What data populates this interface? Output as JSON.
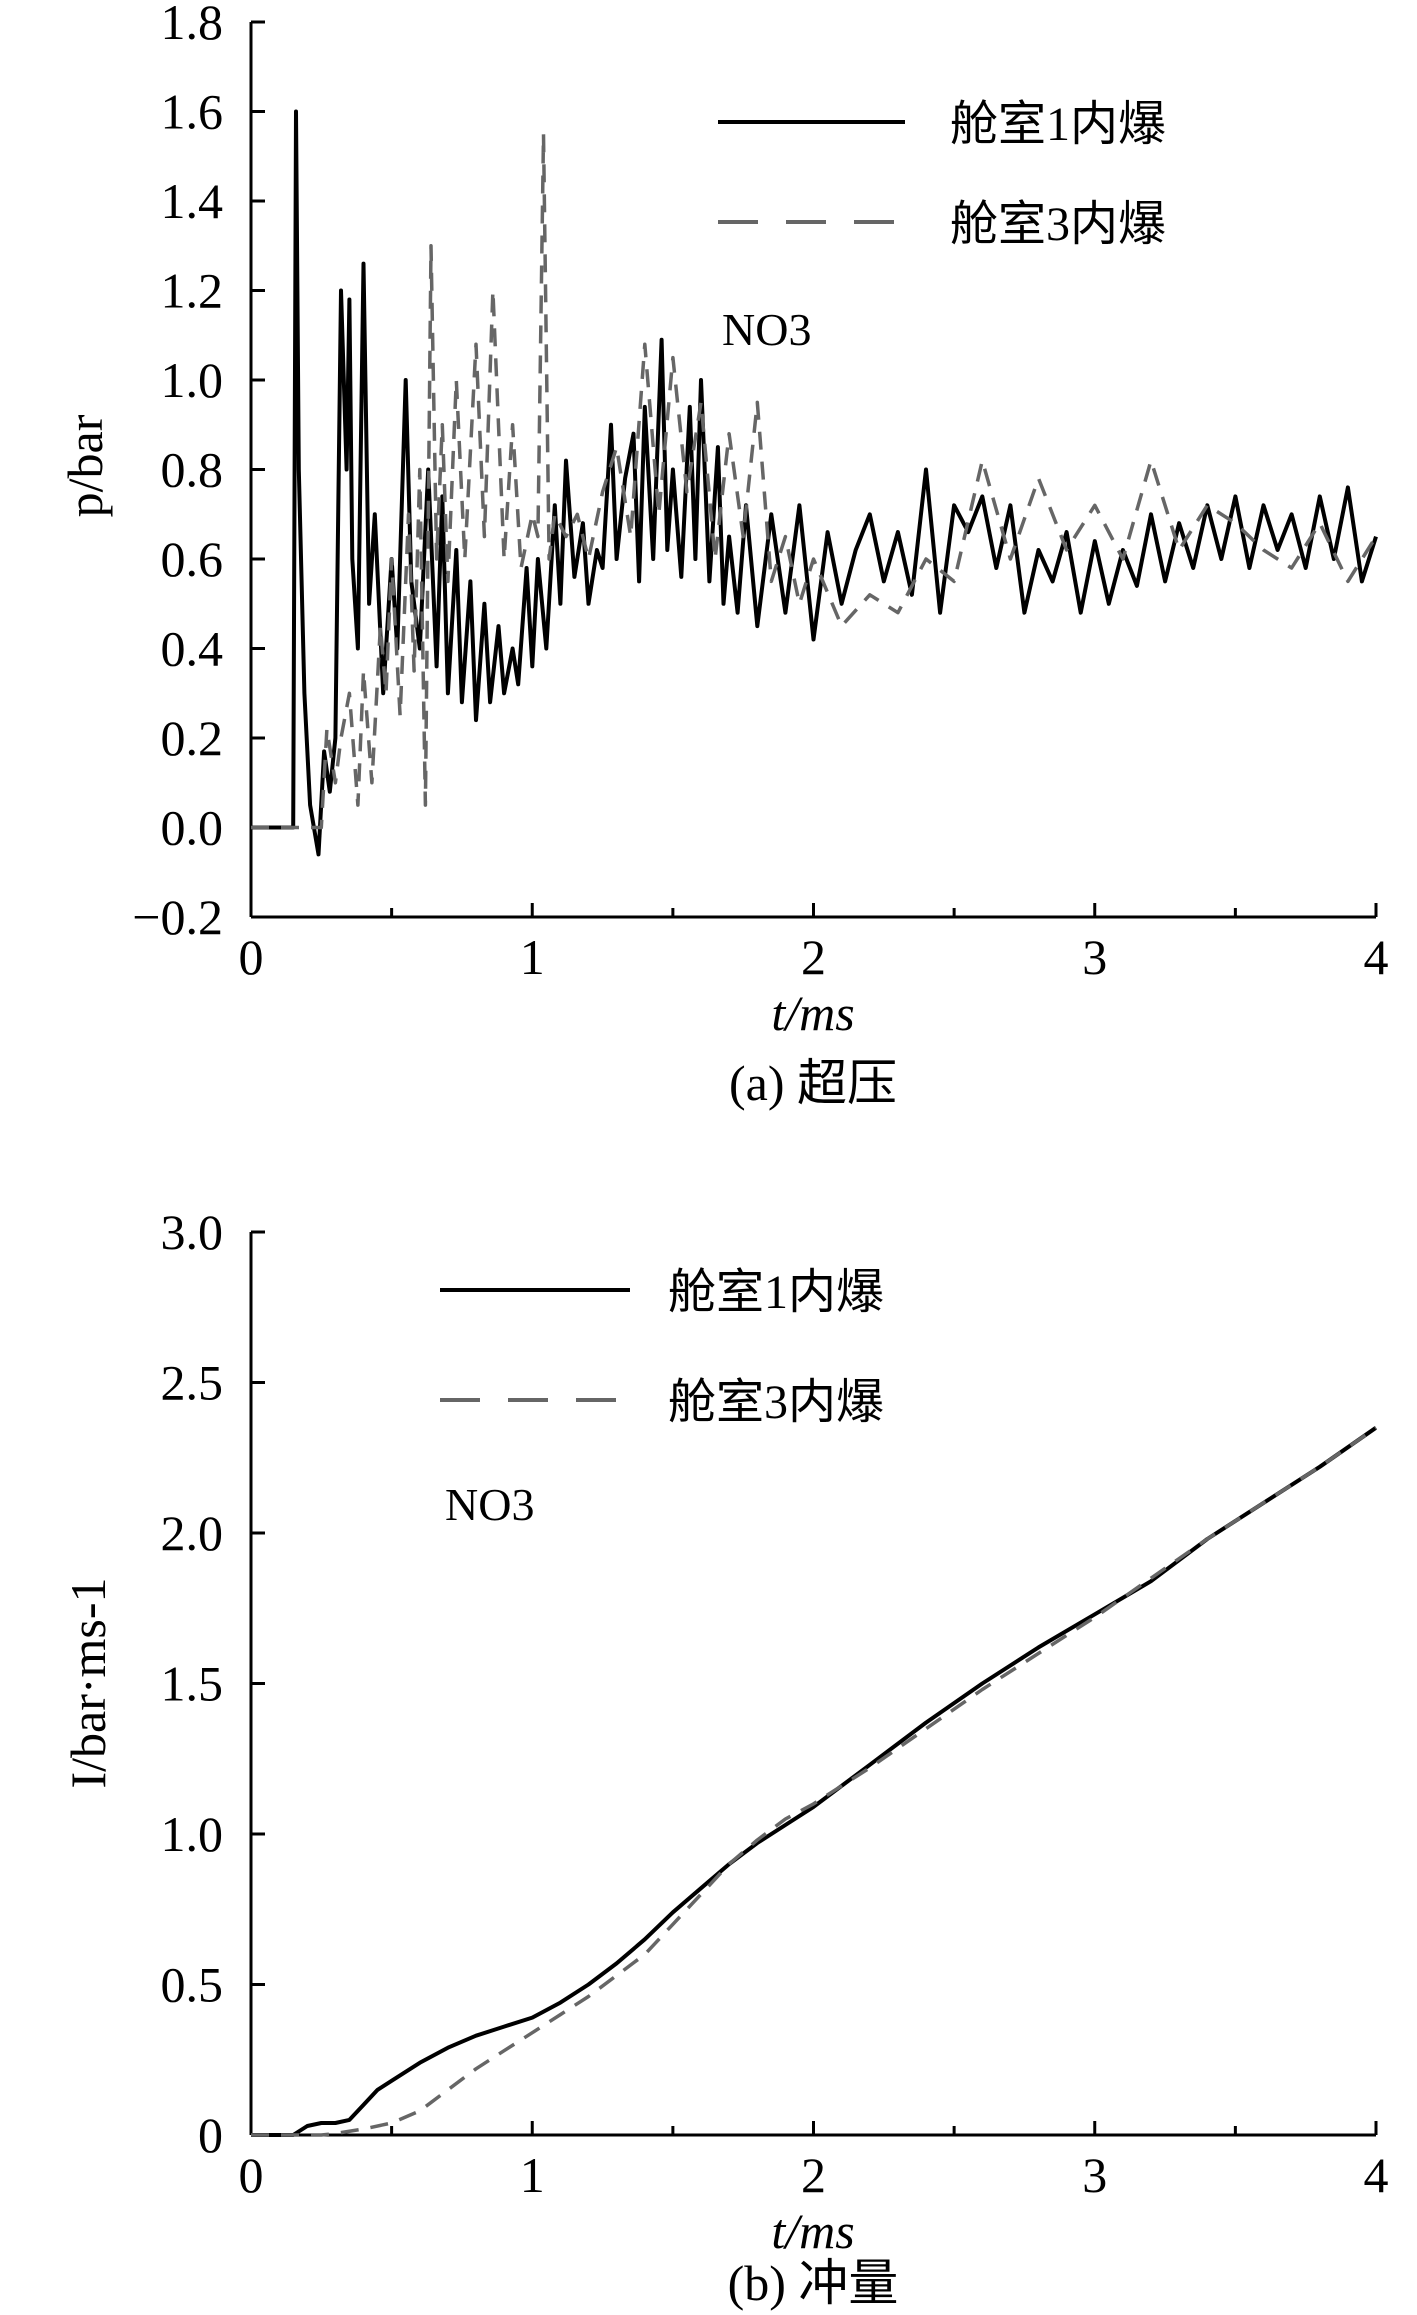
{
  "chart_data": [
    {
      "type": "line",
      "caption": "(a) 超压",
      "xlabel": "t/ms",
      "ylabel": "p/bar",
      "xlim": [
        0,
        4
      ],
      "ylim": [
        -0.2,
        1.8
      ],
      "xticks": [
        "0",
        "1",
        "2",
        "3",
        "4"
      ],
      "yticks": [
        "−0.2",
        "0.0",
        "0.2",
        "0.4",
        "0.6",
        "0.8",
        "1.0",
        "1.2",
        "1.4",
        "1.6",
        "1.8"
      ],
      "annotation": "NO3",
      "legend_position": "top-right",
      "series": [
        {
          "name": "舱室1内爆",
          "style": "solid",
          "color": "#000000",
          "x": [
            0,
            0.15,
            0.16,
            0.17,
            0.19,
            0.21,
            0.24,
            0.26,
            0.28,
            0.3,
            0.32,
            0.34,
            0.35,
            0.36,
            0.38,
            0.4,
            0.42,
            0.44,
            0.47,
            0.5,
            0.52,
            0.55,
            0.57,
            0.6,
            0.63,
            0.66,
            0.68,
            0.7,
            0.73,
            0.75,
            0.78,
            0.8,
            0.83,
            0.85,
            0.88,
            0.9,
            0.93,
            0.95,
            0.98,
            1.0,
            1.02,
            1.05,
            1.08,
            1.1,
            1.12,
            1.15,
            1.18,
            1.2,
            1.23,
            1.25,
            1.28,
            1.3,
            1.33,
            1.36,
            1.38,
            1.4,
            1.43,
            1.46,
            1.48,
            1.5,
            1.53,
            1.56,
            1.58,
            1.6,
            1.63,
            1.66,
            1.68,
            1.7,
            1.73,
            1.76,
            1.8,
            1.85,
            1.9,
            1.95,
            2.0,
            2.05,
            2.1,
            2.15,
            2.2,
            2.25,
            2.3,
            2.35,
            2.4,
            2.45,
            2.5,
            2.55,
            2.6,
            2.65,
            2.7,
            2.75,
            2.8,
            2.85,
            2.9,
            2.95,
            3.0,
            3.05,
            3.1,
            3.15,
            3.2,
            3.25,
            3.3,
            3.35,
            3.4,
            3.45,
            3.5,
            3.55,
            3.6,
            3.65,
            3.7,
            3.75,
            3.8,
            3.85,
            3.9,
            3.95,
            4.0
          ],
          "y": [
            0.0,
            0.0,
            1.6,
            0.8,
            0.3,
            0.05,
            -0.06,
            0.17,
            0.08,
            0.2,
            1.2,
            0.8,
            1.18,
            0.6,
            0.4,
            1.26,
            0.5,
            0.7,
            0.3,
            0.6,
            0.4,
            1.0,
            0.55,
            0.4,
            0.8,
            0.36,
            0.74,
            0.3,
            0.62,
            0.28,
            0.55,
            0.24,
            0.5,
            0.28,
            0.45,
            0.3,
            0.4,
            0.32,
            0.58,
            0.36,
            0.6,
            0.4,
            0.72,
            0.5,
            0.82,
            0.56,
            0.68,
            0.5,
            0.62,
            0.58,
            0.9,
            0.6,
            0.78,
            0.88,
            0.55,
            0.94,
            0.6,
            1.09,
            0.62,
            0.8,
            0.56,
            0.94,
            0.6,
            1.0,
            0.55,
            0.85,
            0.5,
            0.65,
            0.48,
            0.72,
            0.45,
            0.7,
            0.48,
            0.72,
            0.42,
            0.66,
            0.5,
            0.62,
            0.7,
            0.55,
            0.66,
            0.52,
            0.8,
            0.48,
            0.72,
            0.66,
            0.74,
            0.58,
            0.72,
            0.48,
            0.62,
            0.55,
            0.66,
            0.48,
            0.64,
            0.5,
            0.62,
            0.54,
            0.7,
            0.55,
            0.68,
            0.58,
            0.72,
            0.6,
            0.74,
            0.58,
            0.72,
            0.62,
            0.7,
            0.58,
            0.74,
            0.6,
            0.76,
            0.55,
            0.65
          ]
        },
        {
          "name": "舱室3内爆",
          "style": "dashed",
          "color": "#666666",
          "x": [
            0,
            0.25,
            0.27,
            0.3,
            0.32,
            0.35,
            0.38,
            0.4,
            0.43,
            0.46,
            0.48,
            0.5,
            0.53,
            0.56,
            0.58,
            0.6,
            0.62,
            0.64,
            0.66,
            0.68,
            0.7,
            0.73,
            0.76,
            0.8,
            0.83,
            0.86,
            0.9,
            0.93,
            0.96,
            1.0,
            1.02,
            1.04,
            1.06,
            1.08,
            1.12,
            1.16,
            1.2,
            1.25,
            1.3,
            1.35,
            1.4,
            1.45,
            1.5,
            1.55,
            1.6,
            1.65,
            1.7,
            1.75,
            1.8,
            1.85,
            1.9,
            1.95,
            2.0,
            2.1,
            2.2,
            2.3,
            2.4,
            2.5,
            2.6,
            2.7,
            2.8,
            2.9,
            3.0,
            3.1,
            3.2,
            3.3,
            3.4,
            3.5,
            3.6,
            3.7,
            3.8,
            3.9,
            4.0
          ],
          "y": [
            0.0,
            0.0,
            0.22,
            0.1,
            0.2,
            0.3,
            0.05,
            0.35,
            0.1,
            0.45,
            0.3,
            0.6,
            0.25,
            0.7,
            0.35,
            0.8,
            0.05,
            1.3,
            0.6,
            0.9,
            0.55,
            1.0,
            0.6,
            1.08,
            0.65,
            1.2,
            0.6,
            0.9,
            0.58,
            0.7,
            0.65,
            1.55,
            0.6,
            0.7,
            0.65,
            0.7,
            0.6,
            0.75,
            0.85,
            0.65,
            1.08,
            0.7,
            1.05,
            0.75,
            0.95,
            0.6,
            0.88,
            0.65,
            0.95,
            0.55,
            0.65,
            0.5,
            0.6,
            0.45,
            0.52,
            0.48,
            0.6,
            0.55,
            0.82,
            0.6,
            0.78,
            0.62,
            0.72,
            0.6,
            0.82,
            0.62,
            0.72,
            0.68,
            0.62,
            0.58,
            0.68,
            0.55,
            0.65
          ]
        }
      ]
    },
    {
      "type": "line",
      "caption": "(b) 冲量",
      "xlabel": "t/ms",
      "ylabel": "I/bar·ms-1",
      "xlim": [
        0,
        4
      ],
      "ylim": [
        0,
        3.0
      ],
      "xticks": [
        "0",
        "1",
        "2",
        "3",
        "4"
      ],
      "yticks": [
        "0",
        "0.5",
        "1.0",
        "1.5",
        "2.0",
        "2.5",
        "3.0"
      ],
      "annotation": "NO3",
      "legend_position": "top-left",
      "series": [
        {
          "name": "舱室1内爆",
          "style": "solid",
          "color": "#000000",
          "x": [
            0,
            0.15,
            0.2,
            0.25,
            0.3,
            0.35,
            0.4,
            0.45,
            0.5,
            0.6,
            0.7,
            0.8,
            0.9,
            1.0,
            1.1,
            1.2,
            1.3,
            1.4,
            1.5,
            1.6,
            1.7,
            1.8,
            1.9,
            2.0,
            2.2,
            2.4,
            2.6,
            2.8,
            3.0,
            3.2,
            3.4,
            3.6,
            3.8,
            4.0
          ],
          "y": [
            0,
            0,
            0.03,
            0.04,
            0.04,
            0.05,
            0.1,
            0.15,
            0.18,
            0.24,
            0.29,
            0.33,
            0.36,
            0.39,
            0.44,
            0.5,
            0.57,
            0.65,
            0.74,
            0.82,
            0.9,
            0.97,
            1.03,
            1.09,
            1.23,
            1.37,
            1.5,
            1.62,
            1.73,
            1.84,
            1.98,
            2.1,
            2.22,
            2.35
          ]
        },
        {
          "name": "舱室3内爆",
          "style": "dashed",
          "color": "#666666",
          "x": [
            0,
            0.25,
            0.3,
            0.4,
            0.5,
            0.6,
            0.7,
            0.8,
            0.9,
            1.0,
            1.1,
            1.2,
            1.3,
            1.4,
            1.5,
            1.6,
            1.7,
            1.8,
            1.9,
            2.0,
            2.2,
            2.4,
            2.6,
            2.8,
            3.0,
            3.2,
            3.4,
            3.6,
            3.8,
            4.0
          ],
          "y": [
            0,
            0,
            0.005,
            0.02,
            0.04,
            0.08,
            0.15,
            0.22,
            0.28,
            0.34,
            0.4,
            0.46,
            0.53,
            0.6,
            0.7,
            0.8,
            0.9,
            0.98,
            1.05,
            1.1,
            1.22,
            1.35,
            1.48,
            1.6,
            1.72,
            1.85,
            1.98,
            2.1,
            2.22,
            2.35
          ]
        }
      ]
    }
  ]
}
